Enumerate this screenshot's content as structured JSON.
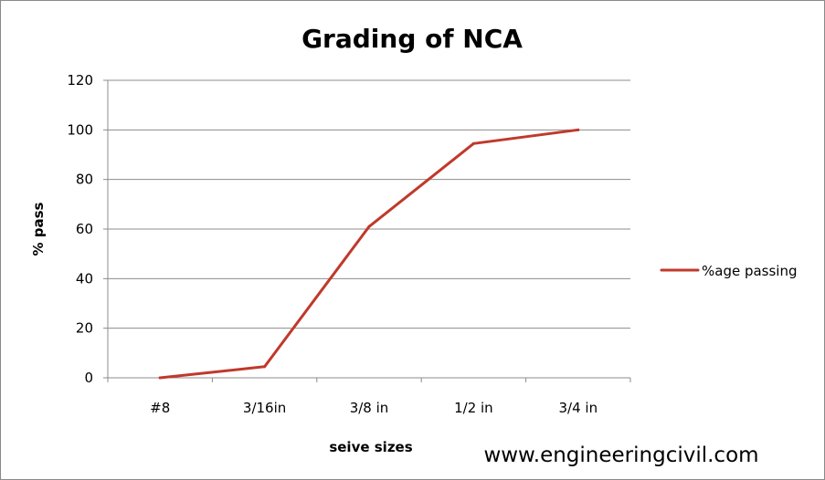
{
  "chart_data": {
    "type": "line",
    "title": "Grading of NCA",
    "xlabel": "seive sizes",
    "ylabel": "% pass",
    "categories": [
      "#8",
      "3/16in",
      "3/8 in",
      "1/2 in",
      "3/4 in"
    ],
    "series": [
      {
        "name": "%age passing",
        "color": "#c0392b",
        "values": [
          0,
          4.5,
          61,
          94.5,
          100
        ]
      }
    ],
    "ylim": [
      0,
      120
    ],
    "yticks": [
      0,
      20,
      40,
      60,
      80,
      100,
      120
    ],
    "grid": "horizontal",
    "legend": "right"
  },
  "watermark": "www.engineeringcivil.com"
}
